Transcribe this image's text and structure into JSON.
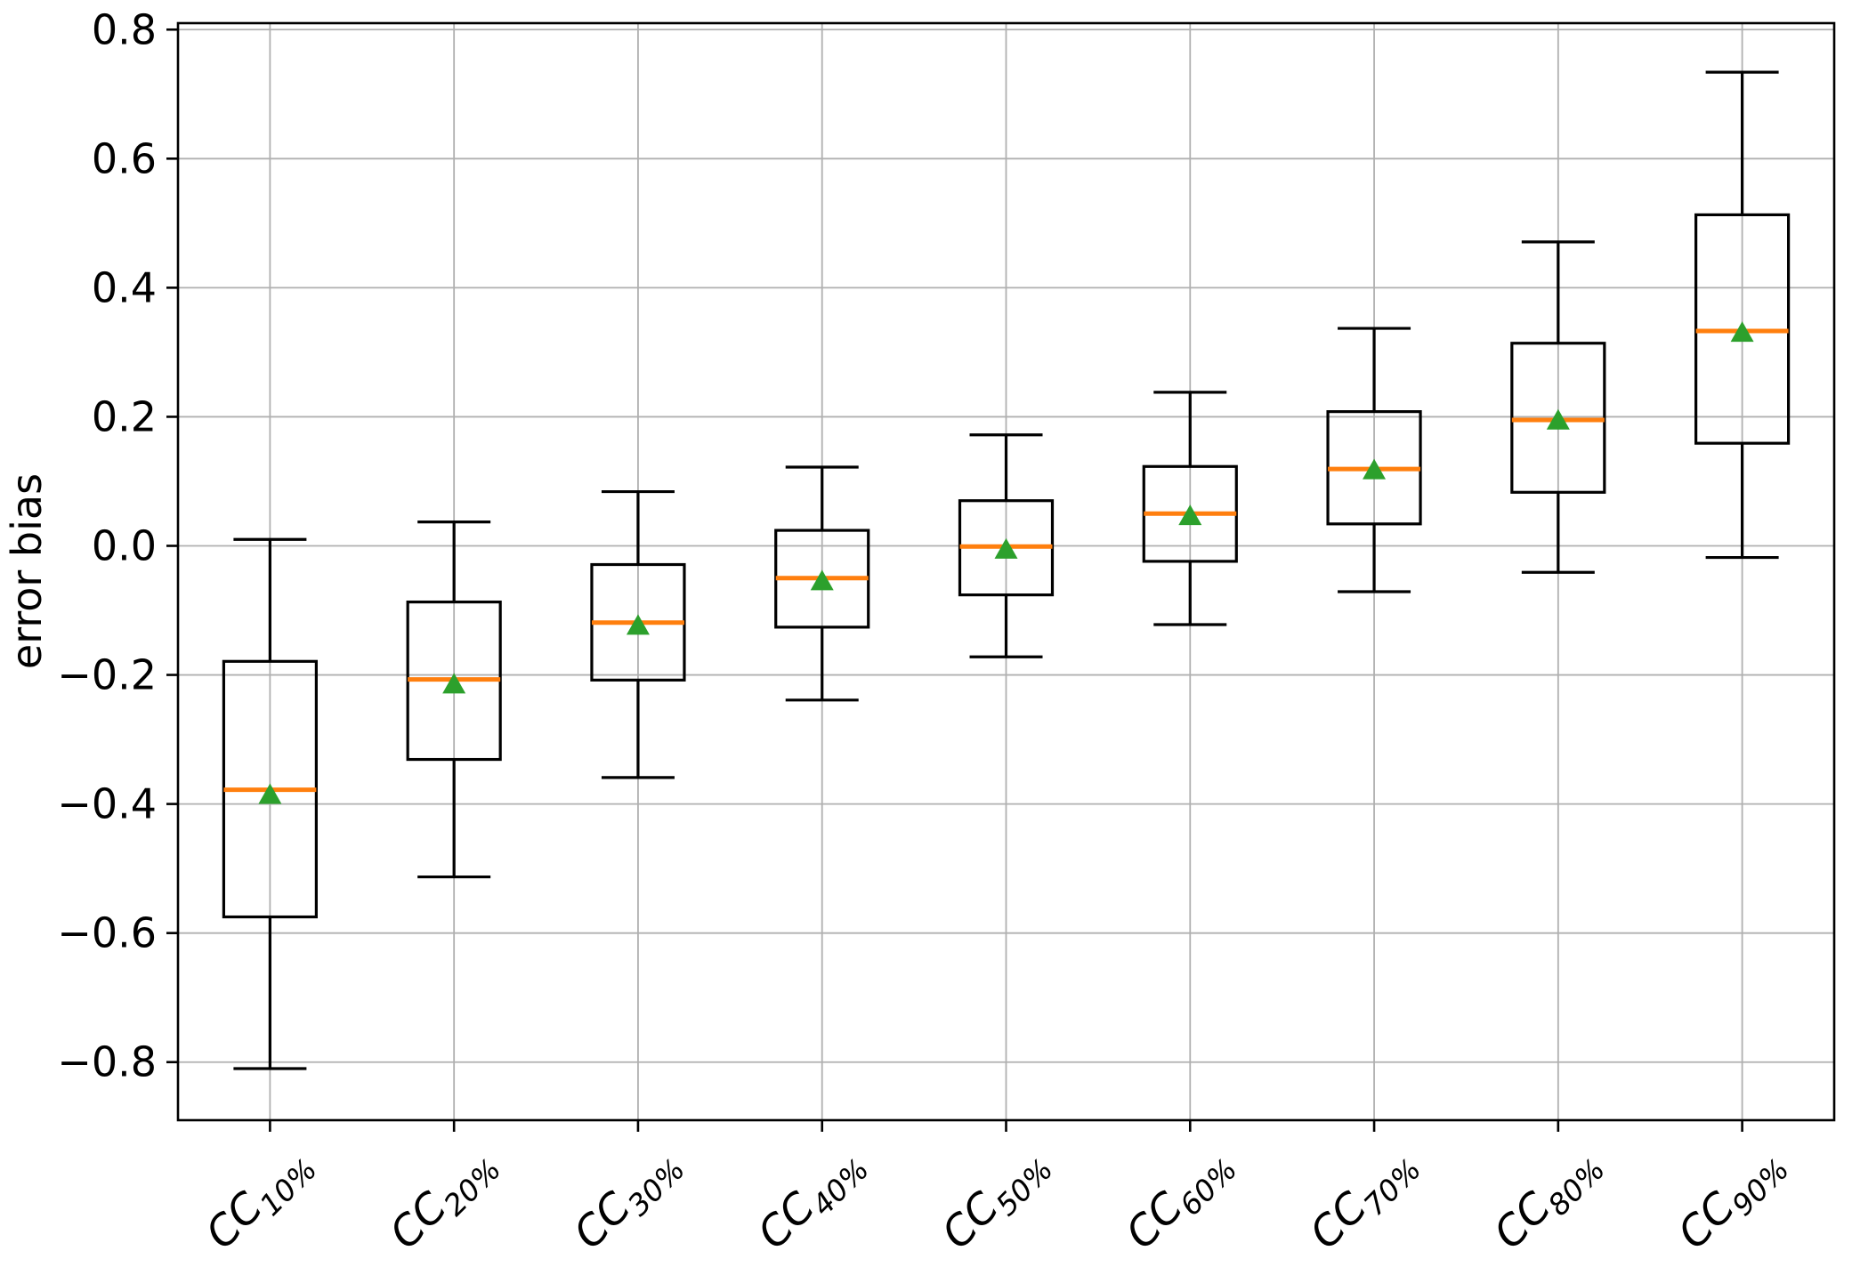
{
  "chart_data": {
    "type": "boxplot",
    "title": "",
    "xlabel": "",
    "ylabel": "error bias",
    "ylim": [
      -0.89,
      0.81
    ],
    "grid": true,
    "legend": "none",
    "y_ticks": [
      {
        "value": 0.8,
        "label": "0.8"
      },
      {
        "value": 0.6,
        "label": "0.6"
      },
      {
        "value": 0.4,
        "label": "0.4"
      },
      {
        "value": 0.2,
        "label": "0.2"
      },
      {
        "value": 0.0,
        "label": "0.0"
      },
      {
        "value": -0.2,
        "label": "−0.2"
      },
      {
        "value": -0.4,
        "label": "−0.4"
      },
      {
        "value": -0.6,
        "label": "−0.6"
      },
      {
        "value": -0.8,
        "label": "−0.8"
      }
    ],
    "categories": [
      {
        "base": "CC",
        "sub": "10%",
        "label": "CC10%"
      },
      {
        "base": "CC",
        "sub": "20%",
        "label": "CC20%"
      },
      {
        "base": "CC",
        "sub": "30%",
        "label": "CC30%"
      },
      {
        "base": "CC",
        "sub": "40%",
        "label": "CC40%"
      },
      {
        "base": "CC",
        "sub": "50%",
        "label": "CC50%"
      },
      {
        "base": "CC",
        "sub": "60%",
        "label": "CC60%"
      },
      {
        "base": "CC",
        "sub": "70%",
        "label": "CC70%"
      },
      {
        "base": "CC",
        "sub": "80%",
        "label": "CC80%"
      },
      {
        "base": "CC",
        "sub": "90%",
        "label": "CC90%"
      }
    ],
    "boxes": [
      {
        "category": "CC10%",
        "whislo": -0.81,
        "q1": -0.575,
        "med": -0.378,
        "mean": -0.386,
        "q3": -0.179,
        "whishi": 0.01
      },
      {
        "category": "CC20%",
        "whislo": -0.513,
        "q1": -0.331,
        "med": -0.207,
        "mean": -0.215,
        "q3": -0.087,
        "whishi": 0.037
      },
      {
        "category": "CC30%",
        "whislo": -0.359,
        "q1": -0.208,
        "med": -0.119,
        "mean": -0.124,
        "q3": -0.029,
        "whishi": 0.084
      },
      {
        "category": "CC40%",
        "whislo": -0.239,
        "q1": -0.126,
        "med": -0.05,
        "mean": -0.055,
        "q3": 0.024,
        "whishi": 0.122
      },
      {
        "category": "CC50%",
        "whislo": -0.172,
        "q1": -0.076,
        "med": -0.001,
        "mean": -0.006,
        "q3": 0.07,
        "whishi": 0.172
      },
      {
        "category": "CC60%",
        "whislo": -0.122,
        "q1": -0.024,
        "med": 0.05,
        "mean": 0.046,
        "q3": 0.123,
        "whishi": 0.238
      },
      {
        "category": "CC70%",
        "whislo": -0.071,
        "q1": 0.034,
        "med": 0.119,
        "mean": 0.117,
        "q3": 0.208,
        "whishi": 0.337
      },
      {
        "category": "CC80%",
        "whislo": -0.041,
        "q1": 0.083,
        "med": 0.195,
        "mean": 0.194,
        "q3": 0.314,
        "whishi": 0.471
      },
      {
        "category": "CC90%",
        "whislo": -0.018,
        "q1": 0.159,
        "med": 0.333,
        "mean": 0.33,
        "q3": 0.513,
        "whishi": 0.734
      }
    ],
    "colors": {
      "median": "#ff7f0e",
      "mean_marker": "#2ca02c",
      "box_edge": "#000000",
      "grid": "#b0b0b0",
      "background": "#ffffff"
    }
  }
}
